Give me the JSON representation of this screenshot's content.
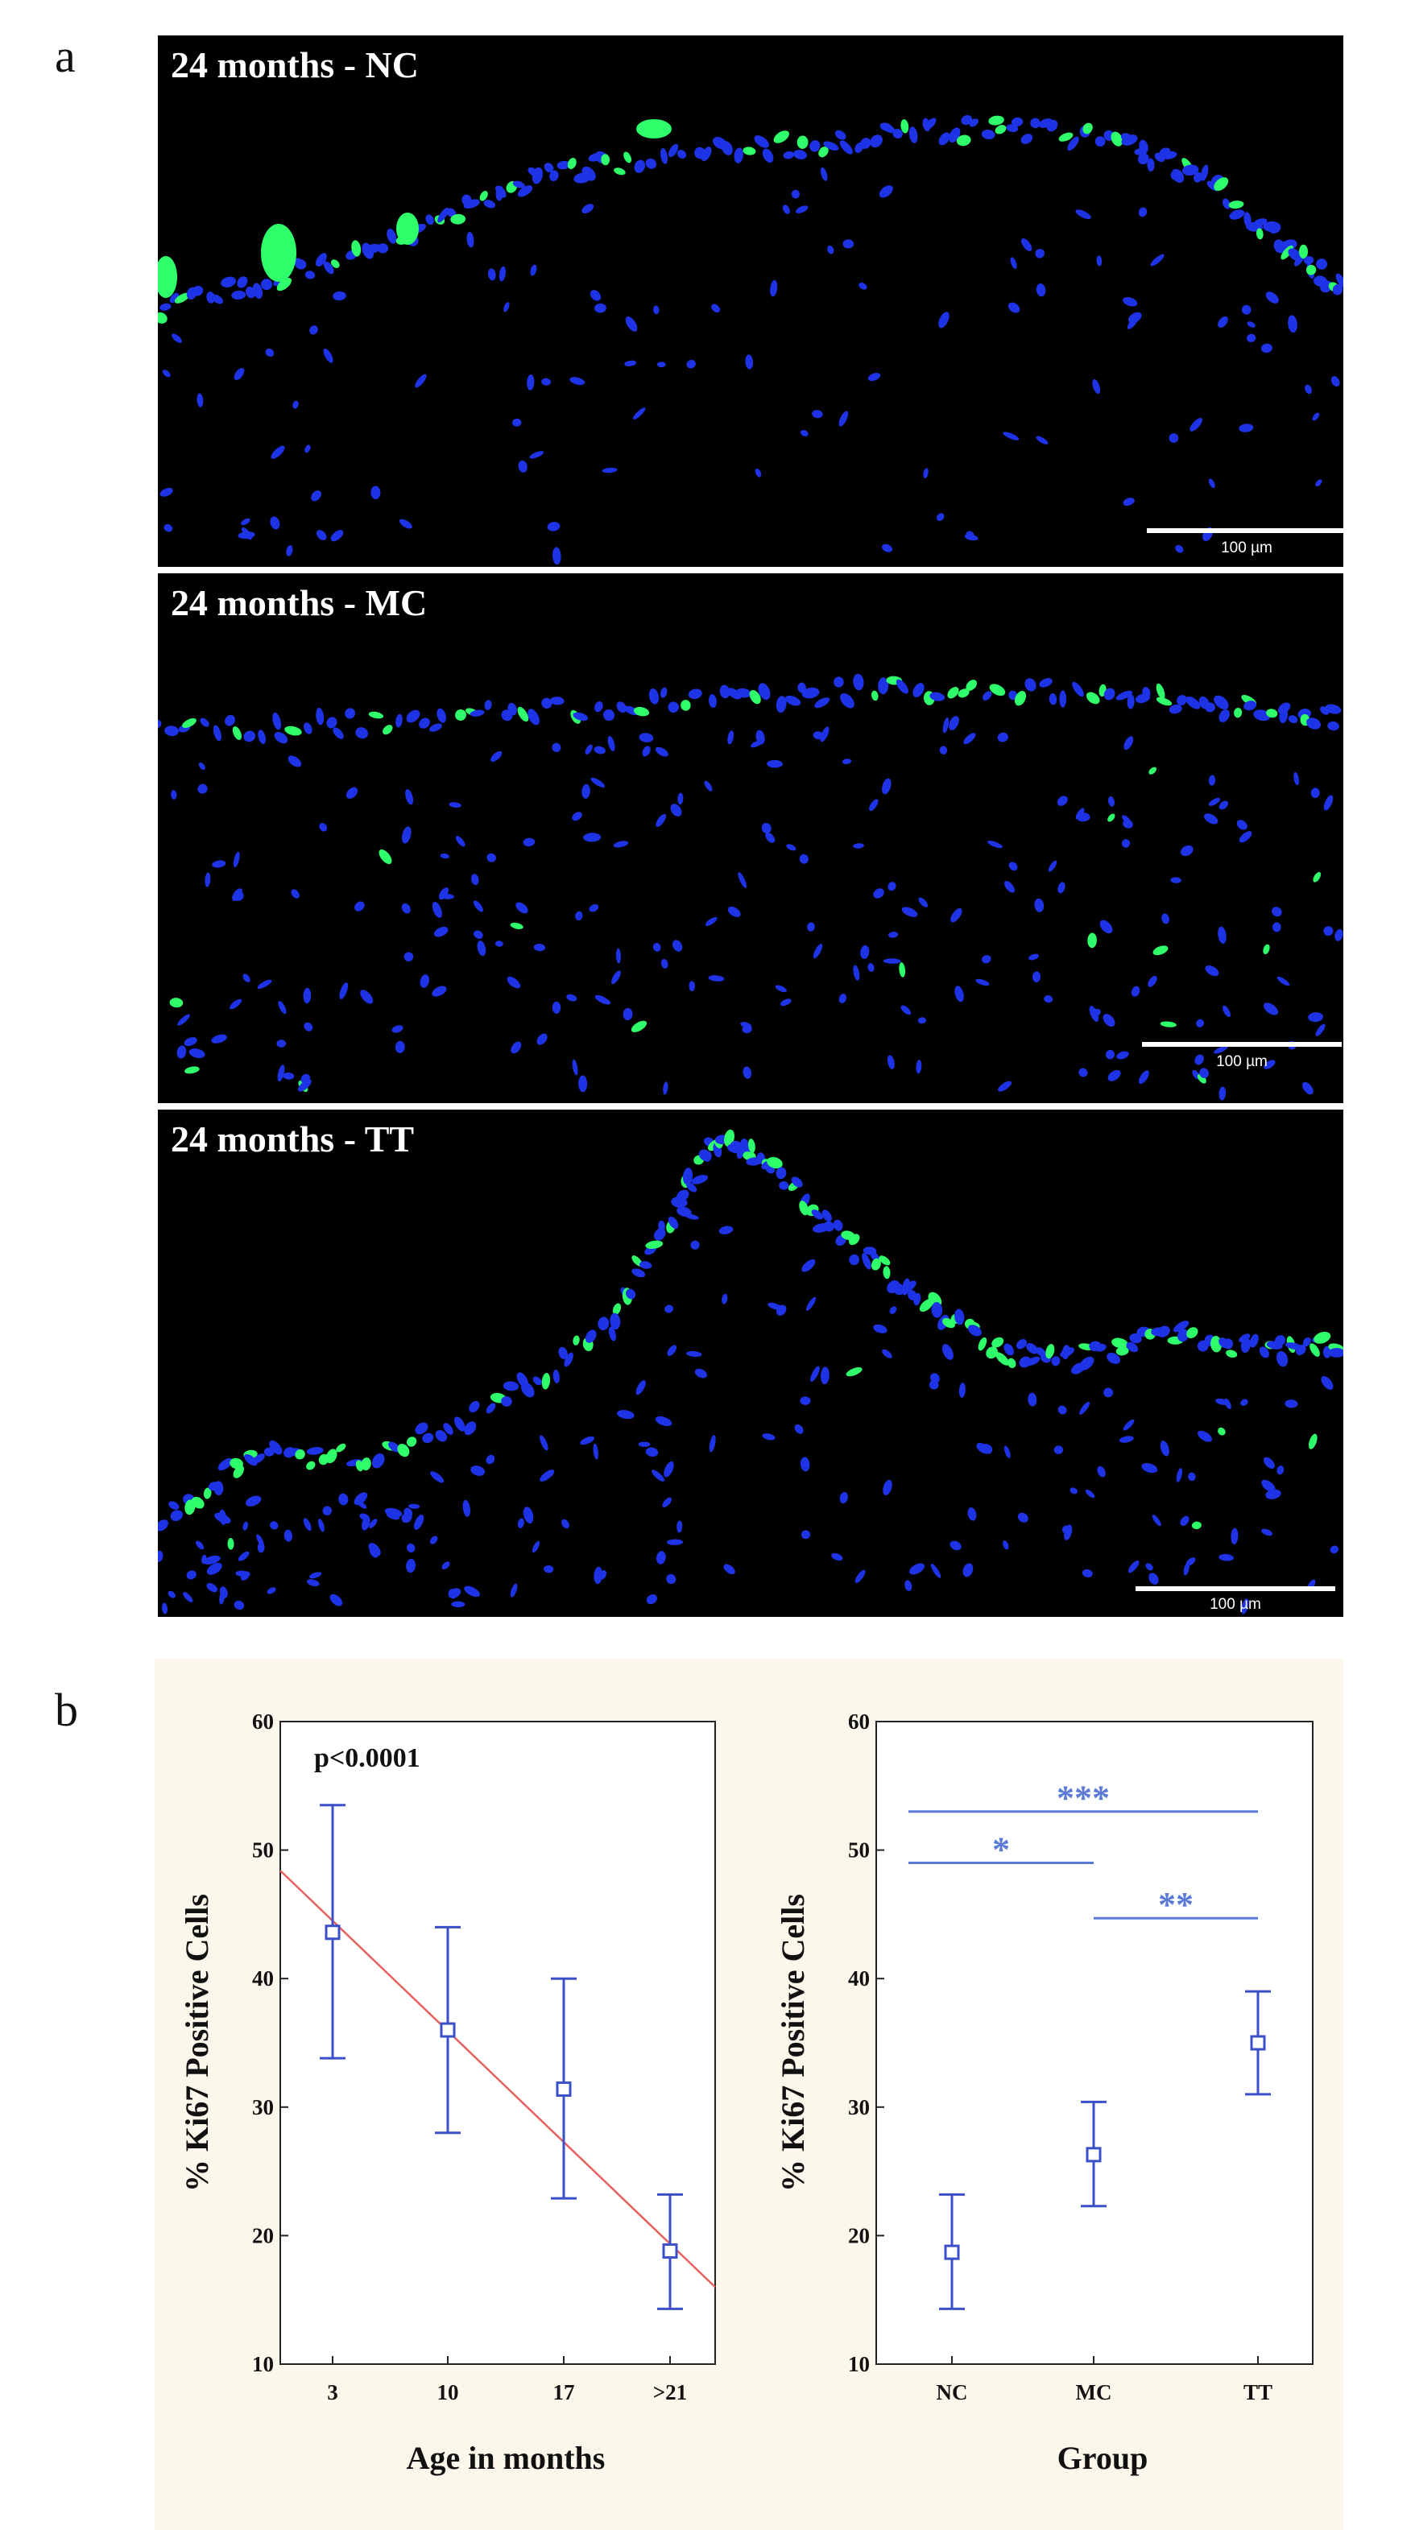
{
  "panel_a": {
    "letter": "a",
    "images": [
      {
        "label": "24 months - NC",
        "scale": "100 µm"
      },
      {
        "label": "24 months - MC",
        "scale": "100 µm"
      },
      {
        "label": "24 months - TT",
        "scale": "100 µm"
      }
    ]
  },
  "panel_b": {
    "letter": "b"
  },
  "colors": {
    "marker": "#3b4fc8",
    "trend": "#e8615e",
    "sig_line": "#5a7ad6",
    "nuclei_blue": "#1f33e6",
    "ki67_green": "#2fff6a",
    "panel_b_background": "#fcf7eb"
  },
  "chart_data": [
    {
      "type": "scatter",
      "title": "",
      "xlabel": "Age in months",
      "ylabel": "% Ki67 Positive Cells",
      "annotation": "p<0.0001",
      "categories": [
        "3",
        "10",
        "17",
        ">21"
      ],
      "ylim": [
        10,
        60
      ],
      "yticks": [
        10,
        20,
        30,
        40,
        50,
        60
      ],
      "values": [
        43.6,
        36.0,
        31.4,
        18.8
      ],
      "error_low": [
        33.8,
        28.0,
        22.9,
        14.3
      ],
      "error_high": [
        53.5,
        44.0,
        40.0,
        23.2
      ],
      "trendline": {
        "start": 48.4,
        "end": 16.0
      },
      "grid": false
    },
    {
      "type": "scatter",
      "title": "",
      "xlabel": "Group",
      "ylabel": "% Ki67 Positive Cells",
      "categories": [
        "NC",
        "MC",
        "TT"
      ],
      "ylim": [
        10,
        60
      ],
      "yticks": [
        10,
        20,
        30,
        40,
        50,
        60
      ],
      "values": [
        18.7,
        26.3,
        35.0
      ],
      "error_low": [
        14.3,
        22.3,
        31.0
      ],
      "error_high": [
        23.2,
        30.4,
        39.0
      ],
      "significance": [
        {
          "from": "NC",
          "to": "TT",
          "label": "***",
          "y": 53
        },
        {
          "from": "NC",
          "to": "MC",
          "label": "*",
          "y": 49
        },
        {
          "from": "MC",
          "to": "TT",
          "label": "**",
          "y": 44.7
        }
      ],
      "grid": false
    }
  ]
}
